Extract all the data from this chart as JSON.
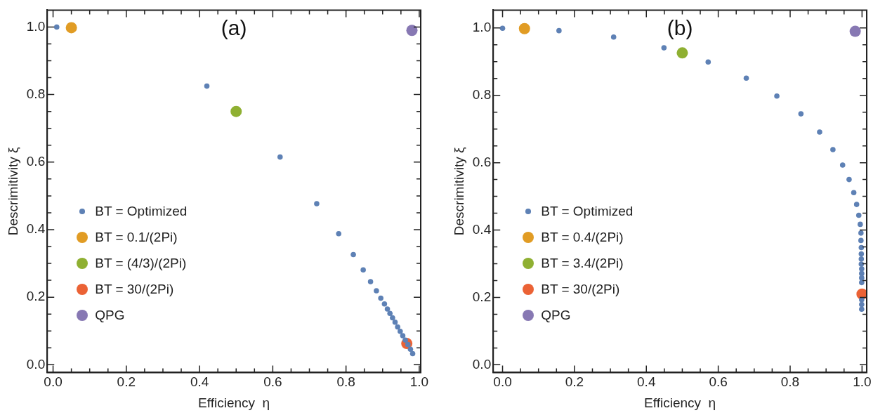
{
  "chart_data": [
    {
      "type": "scatter",
      "annotations": [
        "(a)"
      ],
      "xlabel": "Efficiency  η",
      "ylabel": "Descrimitivity ξ",
      "xlim": [
        -0.016,
        1.004
      ],
      "ylim": [
        -0.023,
        1.05
      ],
      "xticks": [
        {
          "value": 0,
          "label": "0.0"
        },
        {
          "value": 0.05,
          "label": null
        },
        {
          "value": 0.1,
          "label": null
        },
        {
          "value": 0.15,
          "label": null
        },
        0.2,
        {
          "value": 0.25,
          "label": null
        },
        {
          "value": 0.3,
          "label": null
        },
        {
          "value": 0.35,
          "label": null
        },
        0.4,
        {
          "value": 0.45,
          "label": null
        },
        {
          "value": 0.5,
          "label": null
        },
        {
          "value": 0.55,
          "label": null
        },
        0.6,
        {
          "value": 0.65,
          "label": null
        },
        {
          "value": 0.7,
          "label": null
        },
        {
          "value": 0.75,
          "label": null
        },
        0.8,
        {
          "value": 0.85,
          "label": null
        },
        {
          "value": 0.9,
          "label": null
        },
        {
          "value": 0.95,
          "label": null
        },
        {
          "value": 1,
          "label": "1.0"
        }
      ],
      "yticks": [
        {
          "value": 0,
          "label": "0.0"
        },
        {
          "value": 0.05,
          "label": null
        },
        {
          "value": 0.1,
          "label": null
        },
        {
          "value": 0.15,
          "label": null
        },
        0.2,
        {
          "value": 0.25,
          "label": null
        },
        {
          "value": 0.3,
          "label": null
        },
        {
          "value": 0.35,
          "label": null
        },
        0.4,
        {
          "value": 0.45,
          "label": null
        },
        {
          "value": 0.5,
          "label": null
        },
        {
          "value": 0.55,
          "label": null
        },
        0.6,
        {
          "value": 0.65,
          "label": null
        },
        {
          "value": 0.7,
          "label": null
        },
        {
          "value": 0.75,
          "label": null
        },
        0.8,
        {
          "value": 0.85,
          "label": null
        },
        {
          "value": 0.9,
          "label": null
        },
        {
          "value": 0.95,
          "label": null
        },
        {
          "value": 1,
          "label": "1.0"
        }
      ],
      "legend": "left",
      "marker": "circle",
      "grid": false,
      "series": [
        {
          "name": "BT = Optimized",
          "color": "#5e81b5",
          "x": [
            0.01,
            0.42,
            0.62,
            0.72,
            0.78,
            0.82,
            0.847,
            0.867,
            0.883,
            0.895,
            0.905,
            0.913,
            0.92,
            0.927,
            0.934,
            0.941,
            0.948,
            0.955,
            0.962,
            0.969,
            0.976,
            0.982
          ],
          "values": [
            1.0,
            0.825,
            0.615,
            0.477,
            0.388,
            0.326,
            0.281,
            0.246,
            0.219,
            0.197,
            0.18,
            0.165,
            0.152,
            0.139,
            0.126,
            0.112,
            0.099,
            0.086,
            0.073,
            0.06,
            0.046,
            0.033
          ]
        },
        {
          "name": "BT = 0.1/(2Pi)",
          "color": "#e19c24",
          "x": [
            0.05
          ],
          "values": [
            0.998
          ]
        },
        {
          "name": "BT = (4/3)/(2Pi)",
          "color": "#8fb032",
          "x": [
            0.5
          ],
          "values": [
            0.75
          ]
        },
        {
          "name": "BT = 30/(2Pi)",
          "color": "#eb6235",
          "x": [
            0.966
          ],
          "values": [
            0.063
          ]
        },
        {
          "name": "QPG",
          "color": "#8778b3",
          "x": [
            0.98
          ],
          "values": [
            0.99
          ]
        }
      ]
    },
    {
      "type": "scatter",
      "annotations": [
        "(b)"
      ],
      "xlabel": "Efficiency  η",
      "ylabel": "Descrimitivity ξ",
      "xlim": [
        -0.026,
        1.013
      ],
      "ylim": [
        -0.023,
        1.053
      ],
      "xticks": [
        {
          "value": 0,
          "label": "0.0"
        },
        {
          "value": 0.05,
          "label": null
        },
        {
          "value": 0.1,
          "label": null
        },
        {
          "value": 0.15,
          "label": null
        },
        0.2,
        {
          "value": 0.25,
          "label": null
        },
        {
          "value": 0.3,
          "label": null
        },
        {
          "value": 0.35,
          "label": null
        },
        0.4,
        {
          "value": 0.45,
          "label": null
        },
        {
          "value": 0.5,
          "label": null
        },
        {
          "value": 0.55,
          "label": null
        },
        0.6,
        {
          "value": 0.65,
          "label": null
        },
        {
          "value": 0.7,
          "label": null
        },
        {
          "value": 0.75,
          "label": null
        },
        0.8,
        {
          "value": 0.85,
          "label": null
        },
        {
          "value": 0.9,
          "label": null
        },
        {
          "value": 0.95,
          "label": null
        },
        {
          "value": 1,
          "label": "1.0"
        }
      ],
      "yticks": [
        {
          "value": 0,
          "label": "0.0"
        },
        {
          "value": 0.05,
          "label": null
        },
        {
          "value": 0.1,
          "label": null
        },
        {
          "value": 0.15,
          "label": null
        },
        0.2,
        {
          "value": 0.25,
          "label": null
        },
        {
          "value": 0.3,
          "label": null
        },
        {
          "value": 0.35,
          "label": null
        },
        0.4,
        {
          "value": 0.45,
          "label": null
        },
        {
          "value": 0.5,
          "label": null
        },
        {
          "value": 0.55,
          "label": null
        },
        0.6,
        {
          "value": 0.65,
          "label": null
        },
        {
          "value": 0.7,
          "label": null
        },
        {
          "value": 0.75,
          "label": null
        },
        0.8,
        {
          "value": 0.85,
          "label": null
        },
        {
          "value": 0.9,
          "label": null
        },
        {
          "value": 0.95,
          "label": null
        },
        {
          "value": 1,
          "label": "1.0"
        }
      ],
      "legend": "left",
      "marker": "circle",
      "grid": false,
      "series": [
        {
          "name": "BT = Optimized",
          "color": "#5e81b5",
          "x": [
            0.0,
            0.157,
            0.309,
            0.449,
            0.572,
            0.678,
            0.763,
            0.83,
            0.882,
            0.919,
            0.946,
            0.964,
            0.977,
            0.985,
            0.991,
            0.995,
            0.997,
            0.997,
            0.998,
            0.998,
            0.998,
            0.998,
            0.999,
            0.999,
            0.999,
            0.999,
            0.999,
            0.999,
            0.999
          ],
          "values": [
            0.999,
            0.992,
            0.973,
            0.941,
            0.899,
            0.851,
            0.798,
            0.745,
            0.691,
            0.639,
            0.593,
            0.55,
            0.511,
            0.476,
            0.444,
            0.417,
            0.391,
            0.369,
            0.348,
            0.329,
            0.314,
            0.299,
            0.285,
            0.271,
            0.258,
            0.244,
            0.193,
            0.179,
            0.165
          ]
        },
        {
          "name": "BT = 0.4/(2Pi)",
          "color": "#e19c24",
          "x": [
            0.061
          ],
          "values": [
            0.998
          ]
        },
        {
          "name": "BT = 3.4/(2Pi)",
          "color": "#8fb032",
          "x": [
            0.5
          ],
          "values": [
            0.926
          ]
        },
        {
          "name": "BT = 30/(2Pi)",
          "color": "#eb6235",
          "x": [
            1.0
          ],
          "values": [
            0.21
          ]
        },
        {
          "name": "QPG",
          "color": "#8778b3",
          "x": [
            0.981
          ],
          "values": [
            0.99
          ]
        }
      ]
    }
  ]
}
